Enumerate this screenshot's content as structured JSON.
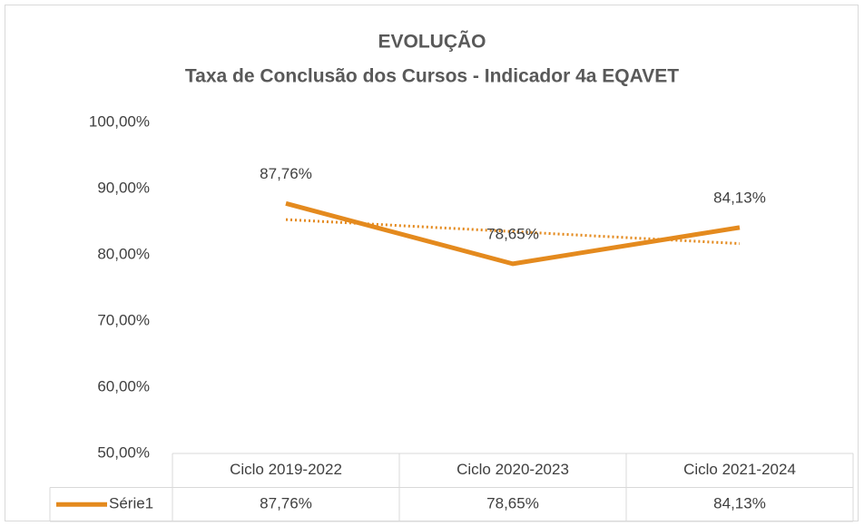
{
  "chart_data": {
    "type": "line",
    "title": "EVOLUÇÃO",
    "subtitle": "Taxa de Conclusão dos Cursos - Indicador 4a EQAVET",
    "categories": [
      "Ciclo 2019-2022",
      "Ciclo 2020-2023",
      "Ciclo 2021-2024"
    ],
    "series": [
      {
        "name": "Série1",
        "color": "#e48a1e",
        "values": [
          87.76,
          78.65,
          84.13
        ],
        "value_labels": [
          "87,76%",
          "78,65%",
          "84,13%"
        ]
      }
    ],
    "trendline": "linear",
    "ylim": [
      50,
      100
    ],
    "yticks": [
      {
        "value": 50,
        "label": "50,00%"
      },
      {
        "value": 60,
        "label": "60,00%"
      },
      {
        "value": 70,
        "label": "70,00%"
      },
      {
        "value": 80,
        "label": "80,00%"
      },
      {
        "value": 90,
        "label": "90,00%"
      },
      {
        "value": 100,
        "label": "100,00%"
      }
    ],
    "grid": false,
    "data_table": true
  }
}
